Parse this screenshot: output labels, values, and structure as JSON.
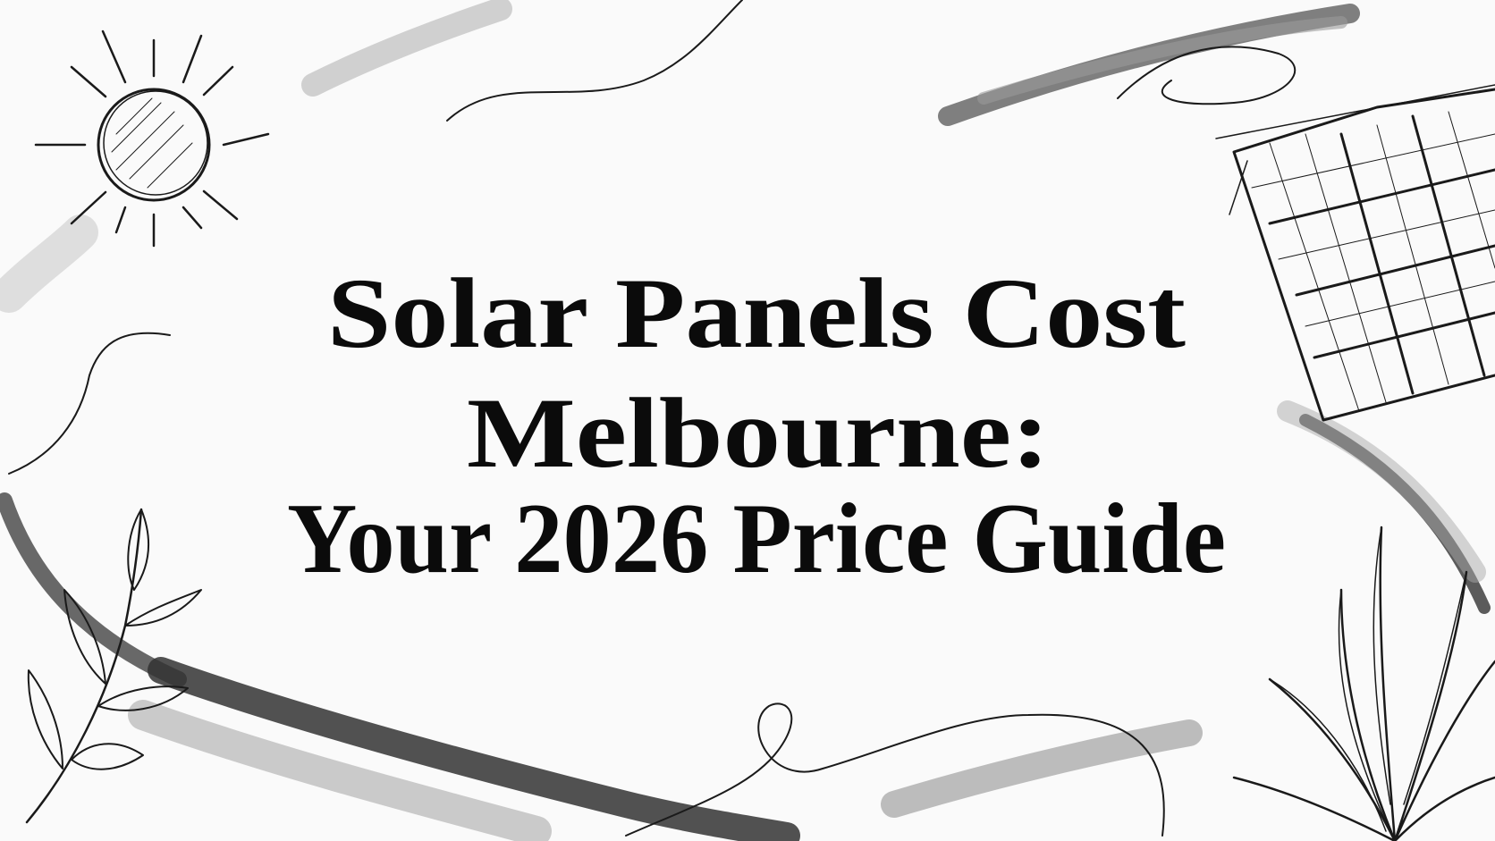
{
  "title": {
    "lines": [
      "Solar Panels Cost",
      "Melbourne:",
      "Your 2026 Price Guide"
    ]
  }
}
